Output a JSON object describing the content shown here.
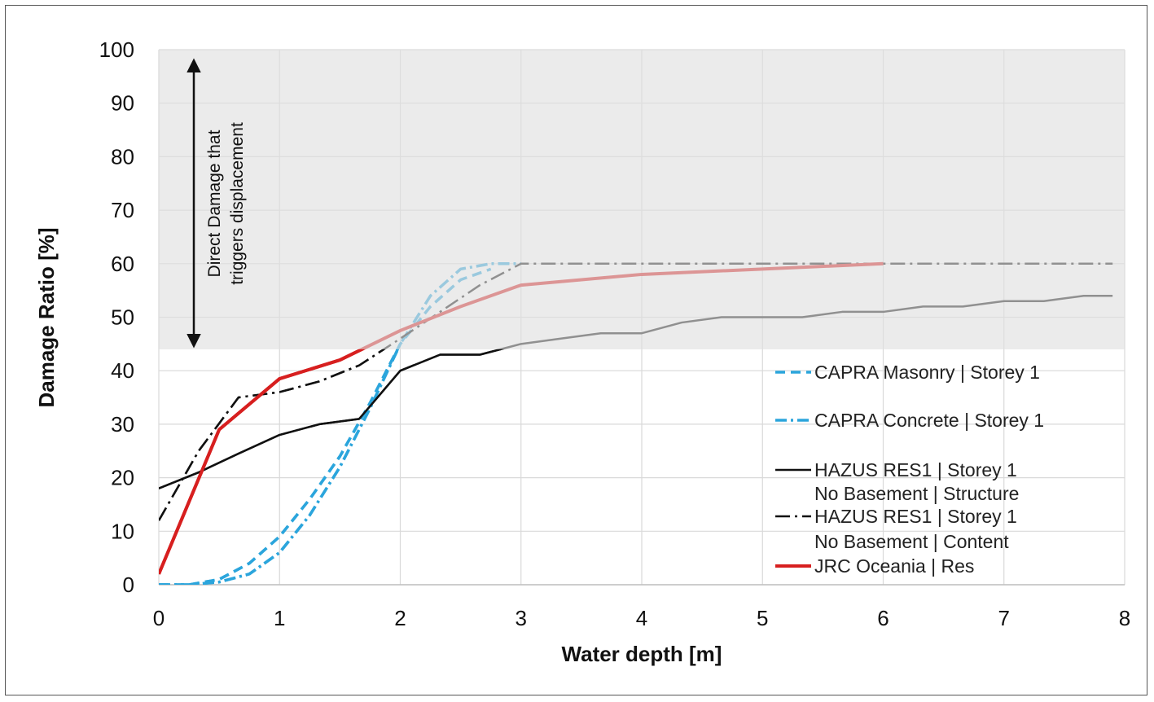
{
  "chart_data": {
    "type": "line",
    "title": "",
    "xlabel": "Water depth [m]",
    "ylabel": "Damage Ratio [%]",
    "xlim": [
      0,
      8
    ],
    "ylim": [
      0,
      100
    ],
    "xticks": [
      0,
      1,
      2,
      3,
      4,
      5,
      6,
      7,
      8
    ],
    "yticks": [
      0,
      10,
      20,
      30,
      40,
      50,
      60,
      70,
      80,
      90,
      100
    ],
    "grid": true,
    "shaded_region": {
      "y_from": 44,
      "y_to": 100,
      "label": "Direct Damage that triggers displacement"
    },
    "annotation": {
      "line1": "Direct Damage that",
      "line2": "triggers displacement"
    },
    "series": [
      {
        "name": "CAPRA Masonry | Storey 1",
        "color": "#2ba5dc",
        "dash": "dash",
        "x": [
          0,
          0.25,
          0.5,
          0.75,
          1.0,
          1.25,
          1.5,
          1.75,
          2.0,
          2.25,
          2.5,
          2.75
        ],
        "y": [
          0,
          0,
          1,
          4,
          9,
          16,
          24,
          34,
          45,
          52,
          57,
          59
        ]
      },
      {
        "name": "CAPRA Concrete | Storey 1",
        "color": "#2ba5dc",
        "dash": "dashdot",
        "x": [
          0,
          0.25,
          0.5,
          0.75,
          1.0,
          1.25,
          1.5,
          1.75,
          2.0,
          2.25,
          2.5,
          2.75,
          3.0
        ],
        "y": [
          0,
          0,
          0.5,
          2,
          6,
          13,
          22,
          33,
          45,
          54,
          59,
          60,
          60
        ]
      },
      {
        "name": "HAZUS RES1 | Storey 1 No Basement | Structure",
        "name_line1": "HAZUS RES1 | Storey 1",
        "name_line2": "No Basement | Structure",
        "color": "#111111",
        "dash": "solid",
        "x": [
          0,
          0.33,
          0.66,
          1.0,
          1.33,
          1.66,
          2.0,
          2.33,
          2.66,
          3.0,
          3.33,
          3.66,
          4.0,
          4.33,
          4.66,
          5.0,
          5.33,
          5.66,
          6.0,
          6.33,
          6.66,
          7.0,
          7.33,
          7.66,
          7.9
        ],
        "y": [
          18,
          21,
          24.5,
          28,
          30,
          31,
          40,
          43,
          43,
          45,
          46,
          47,
          47,
          49,
          50,
          50,
          50,
          51,
          51,
          52,
          52,
          53,
          53,
          54,
          54
        ]
      },
      {
        "name": "HAZUS RES1 | Storey 1 No Basement | Content",
        "name_line1": "HAZUS RES1 | Storey 1",
        "name_line2": "No Basement | Content",
        "color": "#111111",
        "dash": "longdashdot",
        "x": [
          0,
          0.33,
          0.66,
          1.0,
          1.33,
          1.66,
          2.0,
          2.33,
          2.66,
          3.0,
          3.5,
          4.0,
          4.5,
          5.0,
          5.5,
          6.0,
          6.5,
          7.0,
          7.5,
          7.9
        ],
        "y": [
          12,
          25,
          35,
          36,
          38,
          41,
          46,
          51,
          56,
          60,
          60,
          60,
          60,
          60,
          60,
          60,
          60,
          60,
          60,
          60
        ]
      },
      {
        "name": "JRC Oceania | Res",
        "color": "#d71f1f",
        "dash": "solid",
        "x": [
          0,
          0.5,
          1.0,
          1.5,
          2.0,
          2.5,
          3.0,
          4.0,
          5.0,
          6.0
        ],
        "y": [
          2,
          29,
          38.5,
          42,
          47.5,
          52,
          56,
          58,
          59,
          60
        ]
      }
    ]
  }
}
